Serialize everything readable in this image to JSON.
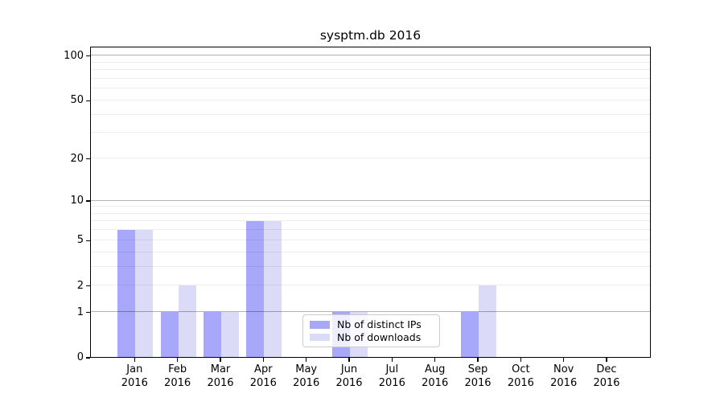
{
  "title": "sysptm.db 2016",
  "legend": {
    "items": [
      {
        "label": "Nb of distinct IPs",
        "color": "#a8a8fa"
      },
      {
        "label": "Nb of downloads",
        "color": "#dbdbf8"
      }
    ]
  },
  "axes": {
    "ytick_values": [
      0,
      1,
      2,
      5,
      10,
      20,
      50,
      100
    ],
    "xtick_year": "2016",
    "grid_major_values": [
      1,
      10,
      100
    ],
    "grid_minor_values": [
      2,
      3,
      4,
      5,
      6,
      7,
      8,
      9,
      20,
      30,
      40,
      50,
      60,
      70,
      80,
      90
    ],
    "grid_major_color": "rgba(0,0,0,0.30)",
    "grid_minor_color": "rgba(0,0,0,0.07)"
  },
  "chart_data": {
    "type": "bar",
    "title": "sysptm.db 2016",
    "categories": [
      "Jan",
      "Feb",
      "Mar",
      "Apr",
      "May",
      "Jun",
      "Jul",
      "Aug",
      "Sep",
      "Oct",
      "Nov",
      "Dec"
    ],
    "category_year": "2016",
    "series": [
      {
        "name": "Nb of distinct IPs",
        "color": "#a8a8fa",
        "values": [
          6,
          1,
          1,
          7,
          0,
          1,
          0,
          0,
          1,
          0,
          0,
          0
        ]
      },
      {
        "name": "Nb of downloads",
        "color": "#dbdbf8",
        "values": [
          6,
          2,
          1,
          7,
          0,
          1,
          0,
          0,
          2,
          0,
          0,
          0
        ]
      }
    ],
    "xlabel": "",
    "ylabel": "",
    "yscale": "log1p",
    "ylim": [
      0,
      115.7
    ],
    "yticks": [
      0,
      1,
      2,
      5,
      10,
      20,
      50,
      100
    ],
    "grid": "horizontal",
    "legend_position": "lower-center-inside"
  }
}
